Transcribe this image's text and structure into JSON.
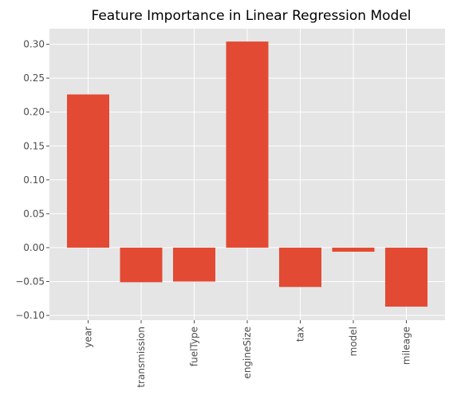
{
  "chart_data": {
    "type": "bar",
    "title": "Feature Importance in Linear Regression Model",
    "xlabel": "",
    "ylabel": "",
    "categories": [
      "year",
      "transmission",
      "fuelType",
      "engineSize",
      "tax",
      "model",
      "mileage"
    ],
    "values": [
      0.226,
      -0.051,
      -0.05,
      0.304,
      -0.058,
      -0.006,
      -0.087
    ],
    "yticks": [
      -0.1,
      -0.05,
      0.0,
      0.05,
      0.1,
      0.15,
      0.2,
      0.25,
      0.3
    ],
    "ytick_labels": [
      "−0.10",
      "−0.05",
      "0.00",
      "0.05",
      "0.10",
      "0.15",
      "0.20",
      "0.25",
      "0.30"
    ],
    "ylim": [
      -0.107,
      0.323
    ],
    "grid": true,
    "colors": {
      "bar": "#E24A33",
      "background": "#E5E5E5",
      "grid": "#FFFFFF"
    }
  }
}
